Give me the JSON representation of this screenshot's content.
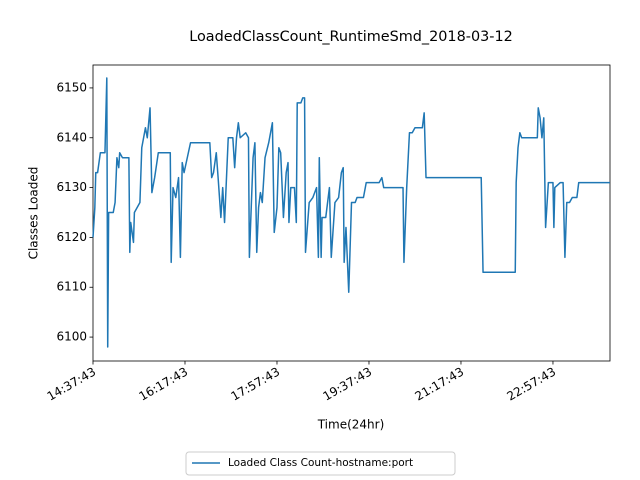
{
  "chart_data": {
    "type": "line",
    "title": "LoadedClassCount_RuntimeSmd_2018-03-12",
    "x_label": "Time(24hr)",
    "y_label": "Classes Loaded",
    "x": [
      "14:37:43",
      "14:39:43",
      "14:40:43",
      "14:42:43",
      "14:45:43",
      "14:50:43",
      "14:52:43",
      "14:53:43",
      "14:54:43",
      "14:59:43",
      "15:01:43",
      "15:03:43",
      "15:05:43",
      "15:06:43",
      "15:09:43",
      "15:16:43",
      "15:17:43",
      "15:18:43",
      "15:21:43",
      "15:22:43",
      "15:25:43",
      "15:28:43",
      "15:30:43",
      "15:34:43",
      "15:36:43",
      "15:39:43",
      "15:41:43",
      "15:44:43",
      "15:48:43",
      "16:01:43",
      "16:02:43",
      "16:04:43",
      "16:07:43",
      "16:10:43",
      "16:12:43",
      "16:14:43",
      "16:16:43",
      "16:23:43",
      "16:44:43",
      "16:46:43",
      "16:48:43",
      "16:51:43",
      "16:53:43",
      "16:56:43",
      "16:58:43",
      "17:00:43",
      "17:04:43",
      "17:09:43",
      "17:11:43",
      "17:13:43",
      "17:15:43",
      "17:17:43",
      "17:23:43",
      "17:26:43",
      "17:27:43",
      "17:31:43",
      "17:33:43",
      "17:35:43",
      "17:37:43",
      "17:39:43",
      "17:41:43",
      "17:44:43",
      "17:48:43",
      "17:52:43",
      "17:54:43",
      "17:57:43",
      "17:59:43",
      "18:01:43",
      "18:04:43",
      "18:07:43",
      "18:09:43",
      "18:10:43",
      "18:12:43",
      "18:16:43",
      "18:18:43",
      "18:19:43",
      "18:23:43",
      "18:25:43",
      "18:27:43",
      "18:28:43",
      "18:32:43",
      "18:36:43",
      "18:40:43",
      "18:42:43",
      "18:43:43",
      "18:45:43",
      "18:46:43",
      "18:50:43",
      "18:54:43",
      "18:56:43",
      "19:00:43",
      "19:04:43",
      "19:07:43",
      "19:09:43",
      "19:10:43",
      "19:12:43",
      "19:15:43",
      "19:18:43",
      "19:22:43",
      "19:24:43",
      "19:31:43",
      "19:34:43",
      "19:48:43",
      "19:51:43",
      "19:53:43",
      "20:14:43",
      "20:15:43",
      "20:18:43",
      "20:21:43",
      "20:24:43",
      "20:27:43",
      "20:35:43",
      "20:37:43",
      "20:39:43",
      "21:39:43",
      "21:41:43",
      "22:16:43",
      "22:17:43",
      "22:19:43",
      "22:21:43",
      "22:23:43",
      "22:40:43",
      "22:41:43",
      "22:43:43",
      "22:45:43",
      "22:47:43",
      "22:49:43",
      "22:52:43",
      "22:57:43",
      "22:58:43",
      "22:59:43",
      "23:05:43",
      "23:08:43",
      "23:10:43",
      "23:12:43",
      "23:15:43",
      "23:18:43",
      "23:23:43",
      "23:25:43",
      "23:59:43"
    ],
    "series": [
      {
        "name": "Loaded Class Count-hostname:port",
        "color": "#1f77b4",
        "values": [
          6120,
          6126,
          6133,
          6133,
          6137,
          6137,
          6152,
          6098,
          6125,
          6125,
          6127,
          6136,
          6134,
          6137,
          6136,
          6136,
          6117,
          6123,
          6119,
          6125,
          6126,
          6127,
          6138,
          6142,
          6140,
          6146,
          6129,
          6132,
          6137,
          6137,
          6115,
          6130,
          6128,
          6132,
          6116,
          6135,
          6133,
          6139,
          6139,
          6132,
          6133,
          6137,
          6132,
          6124,
          6130,
          6123,
          6140,
          6140,
          6134,
          6140,
          6143,
          6140,
          6141,
          6140,
          6116,
          6136,
          6139,
          6117,
          6126,
          6129,
          6127,
          6136,
          6139,
          6143,
          6121,
          6126,
          6138,
          6137,
          6124,
          6133,
          6135,
          6123,
          6130,
          6130,
          6123,
          6147,
          6147,
          6148,
          6148,
          6117,
          6127,
          6128,
          6130,
          6116,
          6136,
          6116,
          6124,
          6124,
          6130,
          6116,
          6127,
          6128,
          6133,
          6134,
          6115,
          6122,
          6109,
          6127,
          6127,
          6128,
          6128,
          6131,
          6131,
          6132,
          6130,
          6130,
          6115,
          6130,
          6141,
          6141,
          6142,
          6142,
          6145,
          6132,
          6132,
          6113,
          6113,
          6131,
          6138,
          6141,
          6140,
          6140,
          6146,
          6144,
          6140,
          6144,
          6122,
          6131,
          6131,
          6122,
          6130,
          6131,
          6131,
          6116,
          6127,
          6127,
          6128,
          6128,
          6131,
          6131
        ]
      }
    ],
    "xlim": [
      "14:37:43",
      "23:59:43"
    ],
    "xticks": [
      "14:37:43",
      "16:17:43",
      "17:57:43",
      "19:37:43",
      "21:17:43",
      "22:57:43"
    ],
    "ylim": [
      6095.2,
      6154.6
    ],
    "yticks": [
      6100,
      6110,
      6120,
      6130,
      6140,
      6150
    ],
    "legend": "lower center"
  }
}
